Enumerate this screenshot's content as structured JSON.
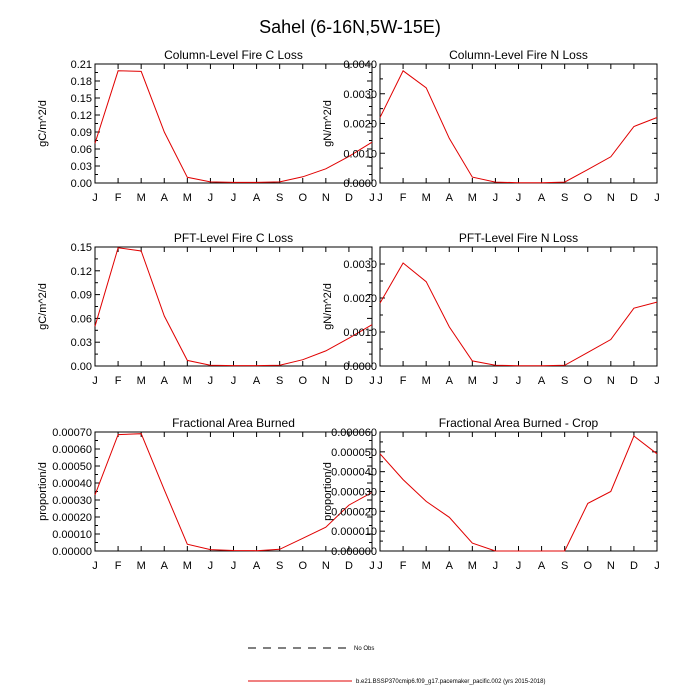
{
  "title": "Sahel (6-16N,5W-15E)",
  "months": [
    "J",
    "F",
    "M",
    "A",
    "M",
    "J",
    "J",
    "A",
    "S",
    "O",
    "N",
    "D",
    "J"
  ],
  "colors": {
    "series": "#e00000",
    "obs": "#000000"
  },
  "legend": {
    "obs_label": "No Obs",
    "series_label": "b.e21.BSSP370cmip6.f09_g17.pacemaker_pacific.002 (yrs 2015-2018)"
  },
  "chart_data": [
    {
      "type": "line",
      "title": "Column-Level Fire C Loss",
      "ylabel": "gC/m^2/d",
      "ylim": [
        0,
        0.21
      ],
      "yticks": [
        0,
        0.03,
        0.06,
        0.09,
        0.12,
        0.15,
        0.18,
        0.21
      ],
      "ytick_labels": [
        "0.00",
        "0.03",
        "0.06",
        "0.09",
        "0.12",
        "0.15",
        "0.18",
        "0.21"
      ],
      "x": [
        "J",
        "F",
        "M",
        "A",
        "M",
        "J",
        "J",
        "A",
        "S",
        "O",
        "N",
        "D",
        "J"
      ],
      "values": [
        0.07,
        0.198,
        0.197,
        0.09,
        0.01,
        0.002,
        0.001,
        0.001,
        0.002,
        0.011,
        0.025,
        0.047,
        0.072
      ]
    },
    {
      "type": "line",
      "title": "Column-Level Fire N Loss",
      "ylabel": "gN/m^2/d",
      "ylim": [
        0,
        0.004
      ],
      "yticks": [
        0,
        0.001,
        0.002,
        0.003,
        0.004
      ],
      "ytick_labels": [
        "0.0000",
        "0.0010",
        "0.0020",
        "0.0030",
        "0.0040"
      ],
      "x": [
        "J",
        "F",
        "M",
        "A",
        "M",
        "J",
        "J",
        "A",
        "S",
        "O",
        "N",
        "D",
        "J"
      ],
      "values": [
        0.0022,
        0.00377,
        0.0032,
        0.0015,
        0.0002,
        3e-05,
        1e-05,
        1e-05,
        3e-05,
        0.00045,
        0.00088,
        0.0019,
        0.0022
      ]
    },
    {
      "type": "line",
      "title": "PFT-Level Fire C Loss",
      "ylabel": "gC/m^2/d",
      "ylim": [
        0,
        0.15
      ],
      "yticks": [
        0,
        0.03,
        0.06,
        0.09,
        0.12,
        0.15
      ],
      "ytick_labels": [
        "0.00",
        "0.03",
        "0.06",
        "0.09",
        "0.12",
        "0.15"
      ],
      "x": [
        "J",
        "F",
        "M",
        "A",
        "M",
        "J",
        "J",
        "A",
        "S",
        "O",
        "N",
        "D",
        "J"
      ],
      "values": [
        0.05,
        0.149,
        0.145,
        0.063,
        0.007,
        0.001,
        0.0005,
        0.0005,
        0.001,
        0.008,
        0.019,
        0.035,
        0.052
      ]
    },
    {
      "type": "line",
      "title": "PFT-Level Fire N Loss",
      "ylabel": "gN/m^2/d",
      "ylim": [
        0,
        0.0035
      ],
      "yticks": [
        0,
        0.001,
        0.002,
        0.003
      ],
      "ytick_labels": [
        "0.0000",
        "0.0010",
        "0.0020",
        "0.0030"
      ],
      "x": [
        "J",
        "F",
        "M",
        "A",
        "M",
        "J",
        "J",
        "A",
        "S",
        "O",
        "N",
        "D",
        "J"
      ],
      "values": [
        0.00185,
        0.00303,
        0.00248,
        0.00115,
        0.00015,
        2e-05,
        1e-05,
        1e-05,
        2e-05,
        0.0004,
        0.00078,
        0.0017,
        0.00188
      ]
    },
    {
      "type": "line",
      "title": "Fractional Area Burned",
      "ylabel": "proportion/d",
      "ylim": [
        0,
        0.0007
      ],
      "yticks": [
        0,
        0.0001,
        0.0002,
        0.0003,
        0.0004,
        0.0005,
        0.0006,
        0.0007
      ],
      "ytick_labels": [
        "0.00000",
        "0.00010",
        "0.00020",
        "0.00030",
        "0.00040",
        "0.00050",
        "0.00060",
        "0.00070"
      ],
      "x": [
        "J",
        "F",
        "M",
        "A",
        "M",
        "J",
        "J",
        "A",
        "S",
        "O",
        "N",
        "D",
        "J"
      ],
      "values": [
        0.00033,
        0.000685,
        0.00069,
        0.00036,
        4e-05,
        8e-06,
        3e-06,
        2e-06,
        1e-05,
        7.5e-05,
        0.00014,
        0.00027,
        0.000345
      ]
    },
    {
      "type": "line",
      "title": "Fractional Area Burned - Crop",
      "ylabel": "proportion/d",
      "ylim": [
        0,
        6e-05
      ],
      "yticks": [
        0,
        1e-05,
        2e-05,
        3e-05,
        4e-05,
        5e-05,
        6e-05
      ],
      "ytick_labels": [
        "0.000000",
        "0.000010",
        "0.000020",
        "0.000030",
        "0.000040",
        "0.000050",
        "0.000060"
      ],
      "x": [
        "J",
        "F",
        "M",
        "A",
        "M",
        "J",
        "J",
        "A",
        "S",
        "O",
        "N",
        "D",
        "J"
      ],
      "values": [
        4.9e-05,
        3.6e-05,
        2.5e-05,
        1.7e-05,
        4e-06,
        0,
        0,
        0,
        0,
        2.4e-05,
        3e-05,
        5.8e-05,
        4.9e-05
      ]
    }
  ]
}
